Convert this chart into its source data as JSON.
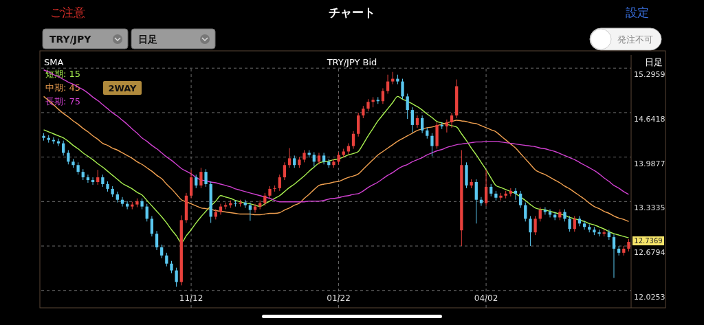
{
  "chart_data": {
    "type": "candlestick",
    "title": "TRY/JPY  Bid",
    "annotations": [
      "ご注意",
      "チャート",
      "設定",
      "TRY/JPY",
      "日足",
      "発注不可",
      "SMA",
      "日足",
      "2WAY",
      "12.7369"
    ],
    "categories": [
      null,
      null,
      null,
      null,
      null,
      null,
      null,
      null,
      null,
      null,
      null,
      null,
      null,
      null,
      null,
      null,
      null,
      null,
      null,
      null,
      null,
      null,
      null,
      null,
      null,
      null,
      null,
      null,
      null,
      null,
      "11/12",
      null,
      null,
      null,
      null,
      null,
      null,
      null,
      null,
      null,
      null,
      null,
      null,
      null,
      null,
      null,
      null,
      null,
      null,
      null,
      null,
      null,
      null,
      null,
      null,
      null,
      null,
      null,
      null,
      null,
      "01/22",
      null,
      null,
      null,
      null,
      null,
      null,
      null,
      null,
      null,
      null,
      null,
      null,
      null,
      null,
      null,
      null,
      null,
      null,
      null,
      null,
      null,
      null,
      null,
      null,
      null,
      null,
      null,
      null,
      null,
      "04/02",
      null,
      null,
      null,
      null,
      null,
      null,
      null,
      null,
      null,
      null,
      null,
      null,
      null,
      null,
      null,
      null,
      null,
      null,
      null,
      null,
      null,
      null,
      null,
      null,
      null,
      null,
      null,
      null,
      null
    ],
    "ohlc": [
      [
        14.3,
        14.34,
        14.23,
        14.27
      ],
      [
        14.27,
        14.31,
        14.2,
        14.24
      ],
      [
        14.24,
        14.28,
        14.18,
        14.22
      ],
      [
        14.22,
        14.26,
        14.15,
        14.19
      ],
      [
        14.19,
        14.23,
        14.01,
        14.05
      ],
      [
        14.05,
        14.09,
        13.88,
        13.92
      ],
      [
        13.92,
        13.96,
        13.83,
        13.87
      ],
      [
        13.87,
        13.91,
        13.73,
        13.77
      ],
      [
        13.77,
        13.81,
        13.65,
        13.69
      ],
      [
        13.69,
        13.73,
        13.61,
        13.65
      ],
      [
        13.65,
        13.69,
        13.58,
        13.62
      ],
      [
        13.62,
        13.8,
        13.58,
        13.69
      ],
      [
        13.69,
        13.73,
        13.55,
        13.59
      ],
      [
        13.59,
        13.63,
        13.48,
        13.52
      ],
      [
        13.52,
        13.56,
        13.4,
        13.44
      ],
      [
        13.44,
        13.48,
        13.32,
        13.36
      ],
      [
        13.36,
        13.4,
        13.26,
        13.3
      ],
      [
        13.3,
        13.34,
        13.22,
        13.26
      ],
      [
        13.26,
        13.33,
        13.22,
        13.29
      ],
      [
        13.29,
        13.38,
        13.25,
        13.34
      ],
      [
        13.34,
        13.38,
        13.22,
        13.26
      ],
      [
        13.26,
        13.3,
        13.04,
        13.08
      ],
      [
        13.08,
        13.12,
        12.82,
        12.86
      ],
      [
        12.86,
        12.9,
        12.62,
        12.66
      ],
      [
        12.66,
        12.7,
        12.5,
        12.54
      ],
      [
        12.54,
        12.58,
        12.38,
        12.42
      ],
      [
        12.42,
        12.46,
        12.28,
        12.32
      ],
      [
        12.32,
        12.36,
        12.08,
        12.15
      ],
      [
        12.15,
        13.13,
        12.1,
        13.06
      ],
      [
        13.06,
        13.46,
        13.02,
        13.42
      ],
      [
        13.42,
        13.8,
        13.38,
        13.69
      ],
      [
        13.69,
        13.73,
        13.53,
        13.57
      ],
      [
        13.57,
        13.83,
        13.53,
        13.77
      ],
      [
        13.77,
        13.81,
        13.55,
        13.59
      ],
      [
        13.59,
        13.63,
        13.02,
        13.11
      ],
      [
        13.11,
        13.22,
        13.07,
        13.18
      ],
      [
        13.18,
        13.3,
        13.14,
        13.26
      ],
      [
        13.26,
        13.32,
        13.22,
        13.28
      ],
      [
        13.28,
        13.35,
        13.24,
        13.31
      ],
      [
        13.31,
        13.35,
        13.26,
        13.3
      ],
      [
        13.3,
        13.36,
        13.26,
        13.32
      ],
      [
        13.32,
        13.36,
        13.24,
        13.28
      ],
      [
        13.28,
        13.32,
        13.05,
        13.21
      ],
      [
        13.21,
        13.3,
        13.17,
        13.26
      ],
      [
        13.26,
        13.35,
        13.22,
        13.31
      ],
      [
        13.31,
        13.46,
        13.27,
        13.42
      ],
      [
        13.42,
        13.56,
        13.38,
        13.52
      ],
      [
        13.52,
        13.57,
        13.48,
        13.53
      ],
      [
        13.53,
        13.73,
        13.49,
        13.69
      ],
      [
        13.69,
        13.91,
        13.65,
        13.87
      ],
      [
        13.87,
        14.12,
        13.83,
        13.97
      ],
      [
        13.97,
        14.01,
        13.83,
        13.87
      ],
      [
        13.87,
        13.99,
        13.83,
        13.95
      ],
      [
        13.95,
        14.09,
        13.91,
        14.05
      ],
      [
        14.05,
        14.09,
        13.98,
        14.02
      ],
      [
        14.02,
        14.06,
        13.85,
        13.92
      ],
      [
        13.92,
        14.05,
        13.88,
        14.01
      ],
      [
        14.01,
        14.05,
        13.88,
        13.92
      ],
      [
        13.92,
        13.96,
        13.83,
        13.87
      ],
      [
        13.87,
        13.96,
        13.83,
        13.92
      ],
      [
        13.92,
        14.06,
        13.88,
        14.02
      ],
      [
        14.02,
        14.11,
        13.98,
        14.07
      ],
      [
        14.07,
        14.19,
        14.03,
        14.15
      ],
      [
        14.15,
        14.37,
        14.11,
        14.33
      ],
      [
        14.33,
        14.64,
        14.29,
        14.6
      ],
      [
        14.6,
        14.74,
        14.56,
        14.7
      ],
      [
        14.7,
        14.84,
        14.66,
        14.8
      ],
      [
        14.8,
        14.87,
        14.72,
        14.83
      ],
      [
        14.83,
        14.87,
        14.77,
        14.81
      ],
      [
        14.81,
        15.0,
        14.77,
        14.96
      ],
      [
        14.96,
        15.2,
        14.92,
        15.1
      ],
      [
        15.1,
        15.24,
        15.06,
        15.14
      ],
      [
        15.14,
        15.2,
        15.06,
        15.1
      ],
      [
        15.1,
        15.14,
        14.84,
        14.88
      ],
      [
        14.88,
        14.92,
        14.55,
        14.68
      ],
      [
        14.68,
        14.72,
        14.35,
        14.46
      ],
      [
        14.46,
        14.6,
        14.42,
        14.56
      ],
      [
        14.56,
        14.6,
        14.34,
        14.38
      ],
      [
        14.38,
        14.42,
        14.26,
        14.3
      ],
      [
        14.3,
        14.34,
        14.0,
        14.15
      ],
      [
        14.15,
        14.5,
        14.11,
        14.46
      ],
      [
        14.46,
        14.5,
        14.4,
        14.44
      ],
      [
        14.44,
        14.54,
        14.35,
        14.5
      ],
      [
        14.5,
        14.64,
        14.42,
        14.6
      ],
      [
        14.6,
        15.13,
        14.56,
        15.03
      ],
      [
        12.91,
        14.09,
        12.68,
        13.87
      ],
      [
        13.87,
        13.91,
        13.53,
        13.57
      ],
      [
        13.57,
        13.66,
        13.53,
        13.62
      ],
      [
        13.62,
        13.66,
        13.01,
        13.36
      ],
      [
        13.36,
        13.4,
        13.27,
        13.31
      ],
      [
        13.31,
        13.8,
        13.27,
        13.55
      ],
      [
        13.55,
        13.59,
        13.41,
        13.45
      ],
      [
        13.45,
        13.49,
        13.35,
        13.39
      ],
      [
        13.39,
        13.46,
        13.35,
        13.42
      ],
      [
        13.42,
        13.49,
        13.38,
        13.45
      ],
      [
        13.45,
        13.53,
        13.41,
        13.49
      ],
      [
        13.49,
        13.53,
        13.36,
        13.45
      ],
      [
        13.45,
        13.49,
        13.24,
        13.28
      ],
      [
        13.28,
        13.32,
        13.04,
        13.08
      ],
      [
        13.08,
        13.12,
        12.68,
        12.88
      ],
      [
        12.88,
        13.12,
        12.84,
        13.08
      ],
      [
        13.08,
        13.25,
        13.04,
        13.21
      ],
      [
        13.21,
        13.25,
        13.14,
        13.18
      ],
      [
        13.18,
        13.22,
        13.1,
        13.14
      ],
      [
        13.14,
        13.18,
        13.06,
        13.1
      ],
      [
        13.1,
        13.22,
        13.06,
        13.18
      ],
      [
        13.18,
        13.22,
        13.04,
        13.08
      ],
      [
        13.08,
        13.12,
        12.89,
        12.93
      ],
      [
        12.93,
        13.12,
        12.89,
        13.08
      ],
      [
        13.08,
        13.12,
        12.97,
        13.01
      ],
      [
        13.01,
        13.05,
        12.92,
        12.96
      ],
      [
        12.96,
        13.0,
        12.88,
        12.92
      ],
      [
        12.92,
        12.96,
        12.84,
        12.88
      ],
      [
        12.88,
        12.92,
        12.82,
        12.86
      ],
      [
        12.86,
        12.92,
        12.82,
        12.88
      ],
      [
        12.88,
        12.92,
        12.77,
        12.81
      ],
      [
        12.81,
        12.85,
        12.21,
        12.64
      ],
      [
        12.64,
        12.68,
        12.54,
        12.58
      ],
      [
        12.58,
        12.68,
        12.54,
        12.64
      ],
      [
        12.64,
        12.78,
        12.6,
        12.74
      ]
    ],
    "colors": [
      "#5ac8f0",
      "#5ac8f0",
      "#5ac8f0",
      "#5ac8f0",
      "#5ac8f0",
      "#5ac8f0",
      "#5ac8f0",
      "#5ac8f0",
      "#5ac8f0",
      "#5ac8f0",
      "#5ac8f0",
      "#e8413c",
      "#5ac8f0",
      "#5ac8f0",
      "#5ac8f0",
      "#5ac8f0",
      "#5ac8f0",
      "#5ac8f0",
      "#e8413c",
      "#e8413c",
      "#5ac8f0",
      "#5ac8f0",
      "#5ac8f0",
      "#5ac8f0",
      "#5ac8f0",
      "#5ac8f0",
      "#5ac8f0",
      "#5ac8f0",
      "#e8413c",
      "#e8413c",
      "#e8413c",
      "#5ac8f0",
      "#e8413c",
      "#5ac8f0",
      "#5ac8f0",
      "#e8413c",
      "#e8413c",
      "#e8413c",
      "#e8413c",
      "#5ac8f0",
      "#e8413c",
      "#5ac8f0",
      "#5ac8f0",
      "#e8413c",
      "#e8413c",
      "#e8413c",
      "#e8413c",
      "#e8413c",
      "#e8413c",
      "#e8413c",
      "#e8413c",
      "#5ac8f0",
      "#e8413c",
      "#e8413c",
      "#5ac8f0",
      "#5ac8f0",
      "#e8413c",
      "#5ac8f0",
      "#5ac8f0",
      "#e8413c",
      "#e8413c",
      "#e8413c",
      "#e8413c",
      "#e8413c",
      "#e8413c",
      "#e8413c",
      "#e8413c",
      "#e8413c",
      "#5ac8f0",
      "#e8413c",
      "#e8413c",
      "#e8413c",
      "#5ac8f0",
      "#5ac8f0",
      "#5ac8f0",
      "#5ac8f0",
      "#e8413c",
      "#5ac8f0",
      "#5ac8f0",
      "#5ac8f0",
      "#e8413c",
      "#5ac8f0",
      "#e8413c",
      "#e8413c",
      "#e8413c",
      "#e8413c",
      "#5ac8f0",
      "#e8413c",
      "#5ac8f0",
      "#5ac8f0",
      "#e8413c",
      "#5ac8f0",
      "#5ac8f0",
      "#e8413c",
      "#e8413c",
      "#e8413c",
      "#5ac8f0",
      "#5ac8f0",
      "#5ac8f0",
      "#5ac8f0",
      "#e8413c",
      "#e8413c",
      "#5ac8f0",
      "#5ac8f0",
      "#5ac8f0",
      "#e8413c",
      "#5ac8f0",
      "#5ac8f0",
      "#e8413c",
      "#5ac8f0",
      "#5ac8f0",
      "#5ac8f0",
      "#5ac8f0",
      "#5ac8f0",
      "#e8413c",
      "#5ac8f0",
      "#5ac8f0",
      "#5ac8f0",
      "#e8413c",
      "#e8413c"
    ],
    "series": [
      {
        "type": "line",
        "name": "短期: 15",
        "color": "#a8f050",
        "values": [
          14.39,
          14.36,
          14.33,
          14.3,
          14.27,
          14.22,
          14.16,
          14.11,
          14.05,
          14.0,
          13.95,
          13.89,
          13.84,
          13.78,
          13.72,
          13.66,
          13.6,
          13.56,
          13.52,
          13.47,
          13.43,
          13.35,
          13.27,
          13.19,
          13.11,
          13.02,
          12.92,
          12.83,
          12.73,
          12.83,
          12.92,
          13.02,
          13.11,
          13.19,
          13.27,
          13.34,
          13.42,
          13.4,
          13.38,
          13.35,
          13.33,
          13.31,
          13.3,
          13.28,
          13.26,
          13.3,
          13.34,
          13.38,
          13.42,
          13.48,
          13.54,
          13.59,
          13.65,
          13.71,
          13.78,
          13.84,
          13.9,
          13.92,
          13.93,
          13.95,
          13.96,
          13.99,
          14.02,
          14.04,
          14.07,
          14.18,
          14.3,
          14.41,
          14.52,
          14.61,
          14.7,
          14.79,
          14.88,
          14.84,
          14.81,
          14.77,
          14.73,
          14.68,
          14.62,
          14.57,
          14.51,
          14.49,
          14.47,
          14.45,
          14.43,
          14.33,
          14.23,
          14.12,
          14.02,
          13.91,
          13.8,
          13.68,
          13.57,
          13.54,
          13.51,
          13.48,
          13.45,
          13.4,
          13.35,
          13.29,
          13.24,
          13.22,
          13.21,
          13.19,
          13.17,
          13.15,
          13.13,
          13.1,
          13.08,
          13.06,
          13.04,
          13.01,
          12.99,
          12.96,
          12.93,
          12.89,
          12.86,
          12.84,
          12.82,
          12.8
        ]
      },
      {
        "type": "line",
        "name": "中期: 45",
        "color": "#f0a050",
        "values": [
          14.88,
          14.82,
          14.76,
          14.69,
          14.63,
          14.58,
          14.52,
          14.47,
          14.41,
          14.36,
          14.3,
          14.25,
          14.19,
          14.16,
          14.12,
          14.09,
          14.05,
          14.01,
          13.97,
          13.92,
          13.88,
          13.83,
          13.78,
          13.72,
          13.67,
          13.59,
          13.52,
          13.44,
          13.36,
          13.33,
          13.3,
          13.27,
          13.24,
          13.23,
          13.22,
          13.2,
          13.19,
          13.18,
          13.17,
          13.16,
          13.15,
          13.15,
          13.15,
          13.14,
          13.14,
          13.15,
          13.16,
          13.16,
          13.17,
          13.21,
          13.24,
          13.28,
          13.31,
          13.38,
          13.44,
          13.51,
          13.57,
          13.59,
          13.6,
          13.62,
          13.63,
          13.66,
          13.69,
          13.71,
          13.74,
          13.81,
          13.88,
          13.95,
          14.02,
          14.07,
          14.12,
          14.17,
          14.22,
          14.26,
          14.3,
          14.34,
          14.38,
          14.4,
          14.42,
          14.43,
          14.45,
          14.47,
          14.49,
          14.51,
          14.53,
          14.52,
          14.51,
          14.49,
          14.48,
          14.45,
          14.42,
          14.39,
          14.36,
          14.3,
          14.24,
          14.18,
          14.12,
          14.04,
          13.96,
          13.88,
          13.8,
          13.76,
          13.73,
          13.69,
          13.65,
          13.61,
          13.56,
          13.52,
          13.47,
          13.42,
          13.37,
          13.31,
          13.26,
          13.23,
          13.19,
          13.16,
          13.12,
          13.09,
          13.07,
          13.04
        ]
      },
      {
        "type": "line",
        "name": "長期: 75",
        "color": "#d040d0",
        "values": [
          15.27,
          15.24,
          15.2,
          15.17,
          15.13,
          15.09,
          15.06,
          15.02,
          14.98,
          14.93,
          14.87,
          14.82,
          14.76,
          14.7,
          14.64,
          14.59,
          14.53,
          14.47,
          14.4,
          14.34,
          14.27,
          14.22,
          14.16,
          14.11,
          14.05,
          13.99,
          13.94,
          13.88,
          13.82,
          13.78,
          13.74,
          13.69,
          13.65,
          13.64,
          13.62,
          13.61,
          13.59,
          13.57,
          13.55,
          13.52,
          13.5,
          13.48,
          13.46,
          13.44,
          13.42,
          13.4,
          13.38,
          13.35,
          13.33,
          13.33,
          13.33,
          13.33,
          13.33,
          13.33,
          13.34,
          13.34,
          13.34,
          13.35,
          13.37,
          13.38,
          13.39,
          13.41,
          13.42,
          13.44,
          13.45,
          13.49,
          13.54,
          13.58,
          13.62,
          13.67,
          13.72,
          13.76,
          13.81,
          13.85,
          13.88,
          13.92,
          13.95,
          13.98,
          14.02,
          14.05,
          14.08,
          14.1,
          14.13,
          14.15,
          14.17,
          14.18,
          14.19,
          14.2,
          14.21,
          14.21,
          14.22,
          14.22,
          14.22,
          14.21,
          14.2,
          14.19,
          14.18,
          14.17,
          14.16,
          14.15,
          14.14,
          14.12,
          14.11,
          14.09,
          14.07,
          14.04,
          14.01,
          13.98,
          13.95,
          13.91,
          13.87,
          13.83,
          13.79,
          13.74,
          13.68,
          13.63,
          13.57,
          13.53,
          13.48,
          13.44
        ]
      }
    ],
    "ylim": [
      11.77,
      15.49
    ],
    "yticks": [
      12.0253,
      12.6794,
      13.3335,
      13.9877,
      14.6418,
      15.2959
    ],
    "grid": true,
    "legend": "top left"
  }
}
